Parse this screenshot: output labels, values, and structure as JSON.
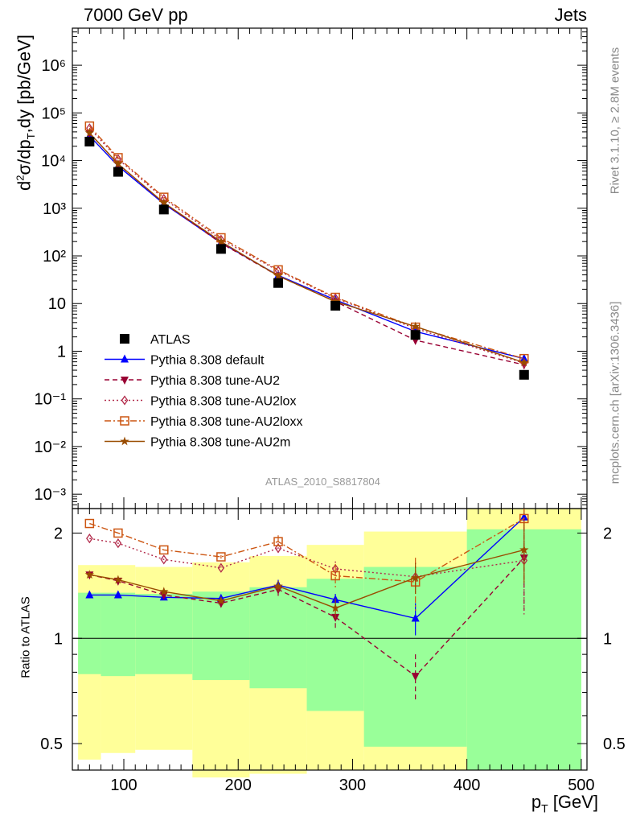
{
  "header": {
    "left": "7000 GeV pp",
    "right": "Jets"
  },
  "side": {
    "rivet": "Rivet 3.1.10, ≥ 2.8M events",
    "mcplots": "mcplots.cern.ch [arXiv:1306.3436]"
  },
  "analysis_id": "ATLAS_2010_S8817804",
  "colors": {
    "data": "#000000",
    "default": "#0000ff",
    "au2": "#990033",
    "au2lox": "#b22a4a",
    "au2loxx": "#cc5511",
    "au2m": "#994c00",
    "band_inner": "#99ff99",
    "band_outer": "#ffff99"
  },
  "chart_data": [
    {
      "type": "line",
      "panel": "main",
      "ylabel": "d²σ/dp_T,dy [pb/GeV]",
      "yscale": "log",
      "ylim": [
        0.0005,
        6000000
      ],
      "xlim": [
        55,
        505
      ],
      "y_tick_labels": [
        "10⁻³",
        "10⁻²",
        "10⁻¹",
        "1",
        "10",
        "10²",
        "10³",
        "10⁴",
        "10⁵",
        "10⁶"
      ],
      "legend_position": "bottom-left",
      "x": [
        70,
        95,
        135,
        185,
        235,
        285,
        355,
        450
      ],
      "series": [
        {
          "key": "data",
          "name": "ATLAS",
          "marker": "square",
          "values": [
            25000,
            5800,
            940,
            140,
            27,
            9,
            2.2,
            0.32
          ]
        },
        {
          "key": "default",
          "name": "Pythia 8.308 default",
          "marker": "triangle-up",
          "dash": "solid",
          "values": [
            33000,
            7700,
            1240,
            190,
            39,
            12,
            2.6,
            0.7
          ]
        },
        {
          "key": "au2",
          "name": "Pythia 8.308 tune-AU2",
          "marker": "triangle-down",
          "dash": "dashed",
          "values": [
            38000,
            8500,
            1280,
            185,
            38,
            11,
            1.7,
            0.52
          ]
        },
        {
          "key": "au2lox",
          "name": "Pythia 8.308 tune-AU2lox",
          "marker": "diamond-open",
          "dash": "dotted",
          "values": [
            48000,
            10800,
            1580,
            220,
            49,
            13,
            3.0,
            0.56
          ]
        },
        {
          "key": "au2loxx",
          "name": "Pythia 8.308 tune-AU2loxx",
          "marker": "square-open",
          "dash": "dashdot",
          "values": [
            53000,
            11500,
            1700,
            240,
            51,
            13.5,
            3.2,
            0.7
          ]
        },
        {
          "key": "au2m",
          "name": "Pythia 8.308 tune-AU2m",
          "marker": "star",
          "dash": "solid",
          "values": [
            38000,
            8500,
            1300,
            200,
            38,
            11,
            3.3,
            0.58
          ]
        }
      ]
    },
    {
      "type": "line",
      "panel": "ratio",
      "ylabel": "Ratio to ATLAS",
      "xlabel": "p_T [GeV]",
      "yscale": "log",
      "ylim": [
        0.42,
        2.35
      ],
      "xlim": [
        55,
        505
      ],
      "y_ticks": [
        0.5,
        1,
        2
      ],
      "y_tick_labels": [
        "0.5",
        "1",
        "2"
      ],
      "x_ticks": [
        100,
        200,
        300,
        400,
        500
      ],
      "x_tick_labels": [
        "100",
        "200",
        "300",
        "400",
        "500"
      ],
      "reference": 1,
      "x": [
        70,
        95,
        135,
        185,
        235,
        285,
        355,
        450
      ],
      "bands": [
        {
          "x0": 60,
          "x1": 80,
          "inner": [
            0.79,
            1.35
          ],
          "outer": [
            0.45,
            1.62
          ]
        },
        {
          "x0": 80,
          "x1": 110,
          "inner": [
            0.78,
            1.35
          ],
          "outer": [
            0.47,
            1.62
          ]
        },
        {
          "x0": 110,
          "x1": 160,
          "inner": [
            0.79,
            1.34
          ],
          "outer": [
            0.48,
            1.6
          ]
        },
        {
          "x0": 160,
          "x1": 210,
          "inner": [
            0.76,
            1.36
          ],
          "outer": [
            0.4,
            1.65
          ]
        },
        {
          "x0": 210,
          "x1": 260,
          "inner": [
            0.72,
            1.4
          ],
          "outer": [
            0.41,
            1.72
          ]
        },
        {
          "x0": 260,
          "x1": 310,
          "inner": [
            0.62,
            1.48
          ],
          "outer": [
            0.42,
            1.85
          ]
        },
        {
          "x0": 310,
          "x1": 400,
          "inner": [
            0.49,
            1.6
          ],
          "outer": [
            0.42,
            2.02
          ]
        },
        {
          "x0": 400,
          "x1": 500,
          "inner": [
            0.42,
            2.05
          ],
          "outer": [
            0.42,
            2.35
          ]
        }
      ],
      "series": [
        {
          "key": "default",
          "values": [
            1.33,
            1.33,
            1.31,
            1.3,
            1.42,
            1.29,
            1.14,
            2.22
          ],
          "errors": [
            0,
            0,
            0,
            0.03,
            0.05,
            0.05,
            0.12,
            0
          ]
        },
        {
          "key": "au2",
          "values": [
            1.52,
            1.46,
            1.33,
            1.26,
            1.38,
            1.15,
            0.78,
            1.7
          ],
          "errors": [
            0,
            0,
            0,
            0.02,
            0.06,
            0.08,
            0.12,
            0.5
          ]
        },
        {
          "key": "au2lox",
          "values": [
            1.93,
            1.87,
            1.68,
            1.59,
            1.81,
            1.58,
            1.5,
            1.67
          ],
          "errors": [
            0,
            0,
            0,
            0.02,
            0.06,
            0.08,
            0.15,
            0.5
          ]
        },
        {
          "key": "au2loxx",
          "values": [
            2.13,
            2.0,
            1.79,
            1.71,
            1.89,
            1.51,
            1.45,
            2.2
          ],
          "errors": [
            0,
            0,
            0,
            0.02,
            0.08,
            0.12,
            0.25,
            0.15
          ]
        },
        {
          "key": "au2m",
          "values": [
            1.52,
            1.47,
            1.36,
            1.28,
            1.41,
            1.22,
            1.49,
            1.79
          ],
          "errors": [
            0,
            0,
            0,
            0.02,
            0.05,
            0.08,
            0.15,
            0.35
          ]
        }
      ]
    }
  ]
}
